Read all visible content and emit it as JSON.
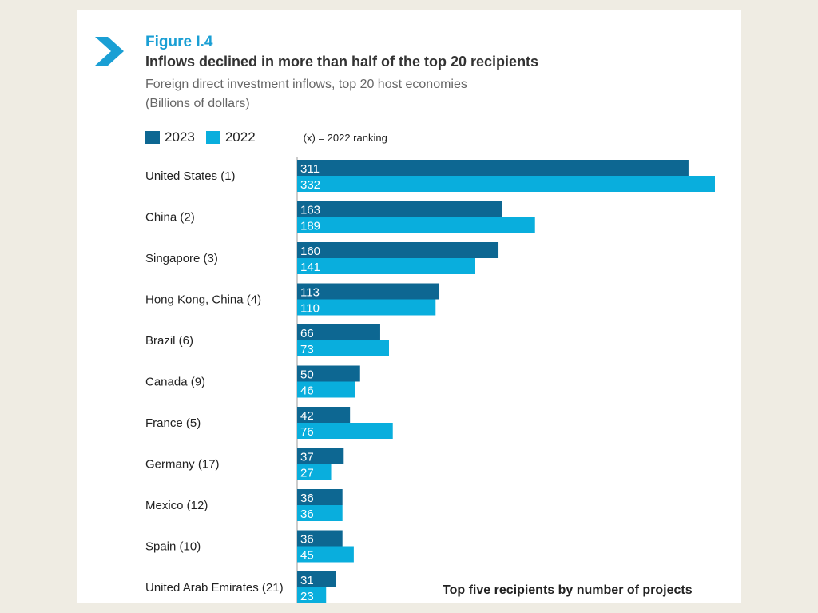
{
  "figure_label": "Figure I.4",
  "title": "Inflows declined in more than half of the top 20 recipients",
  "subtitle_lines": [
    "Foreign direct investment inflows, top 20 host economies",
    "(Billions of dollars)"
  ],
  "legend_note": "(x) = 2022 ranking",
  "footnote": "Top five recipients by number of projects",
  "colors": {
    "2023": "#0d6792",
    "2022": "#09aedd",
    "accent": "#1a9fd4",
    "background": "#efece3"
  },
  "chart_data": {
    "type": "bar",
    "orientation": "horizontal",
    "title": "Inflows declined in more than half of the top 20 recipients",
    "categories": [
      "United States (1)",
      "China (2)",
      "Singapore (3)",
      "Hong Kong, China (4)",
      "Brazil (6)",
      "Canada (9)",
      "France (5)",
      "Germany (17)",
      "Mexico (12)",
      "Spain (10)",
      "United Arab Emirates (21)"
    ],
    "series": [
      {
        "name": "2023",
        "values": [
          311,
          163,
          160,
          113,
          66,
          50,
          42,
          37,
          36,
          36,
          31
        ]
      },
      {
        "name": "2022",
        "values": [
          332,
          189,
          141,
          110,
          73,
          46,
          76,
          27,
          36,
          45,
          23
        ]
      }
    ],
    "xlim": [
      0,
      332
    ],
    "legend_position": "top-left",
    "grid": false
  }
}
